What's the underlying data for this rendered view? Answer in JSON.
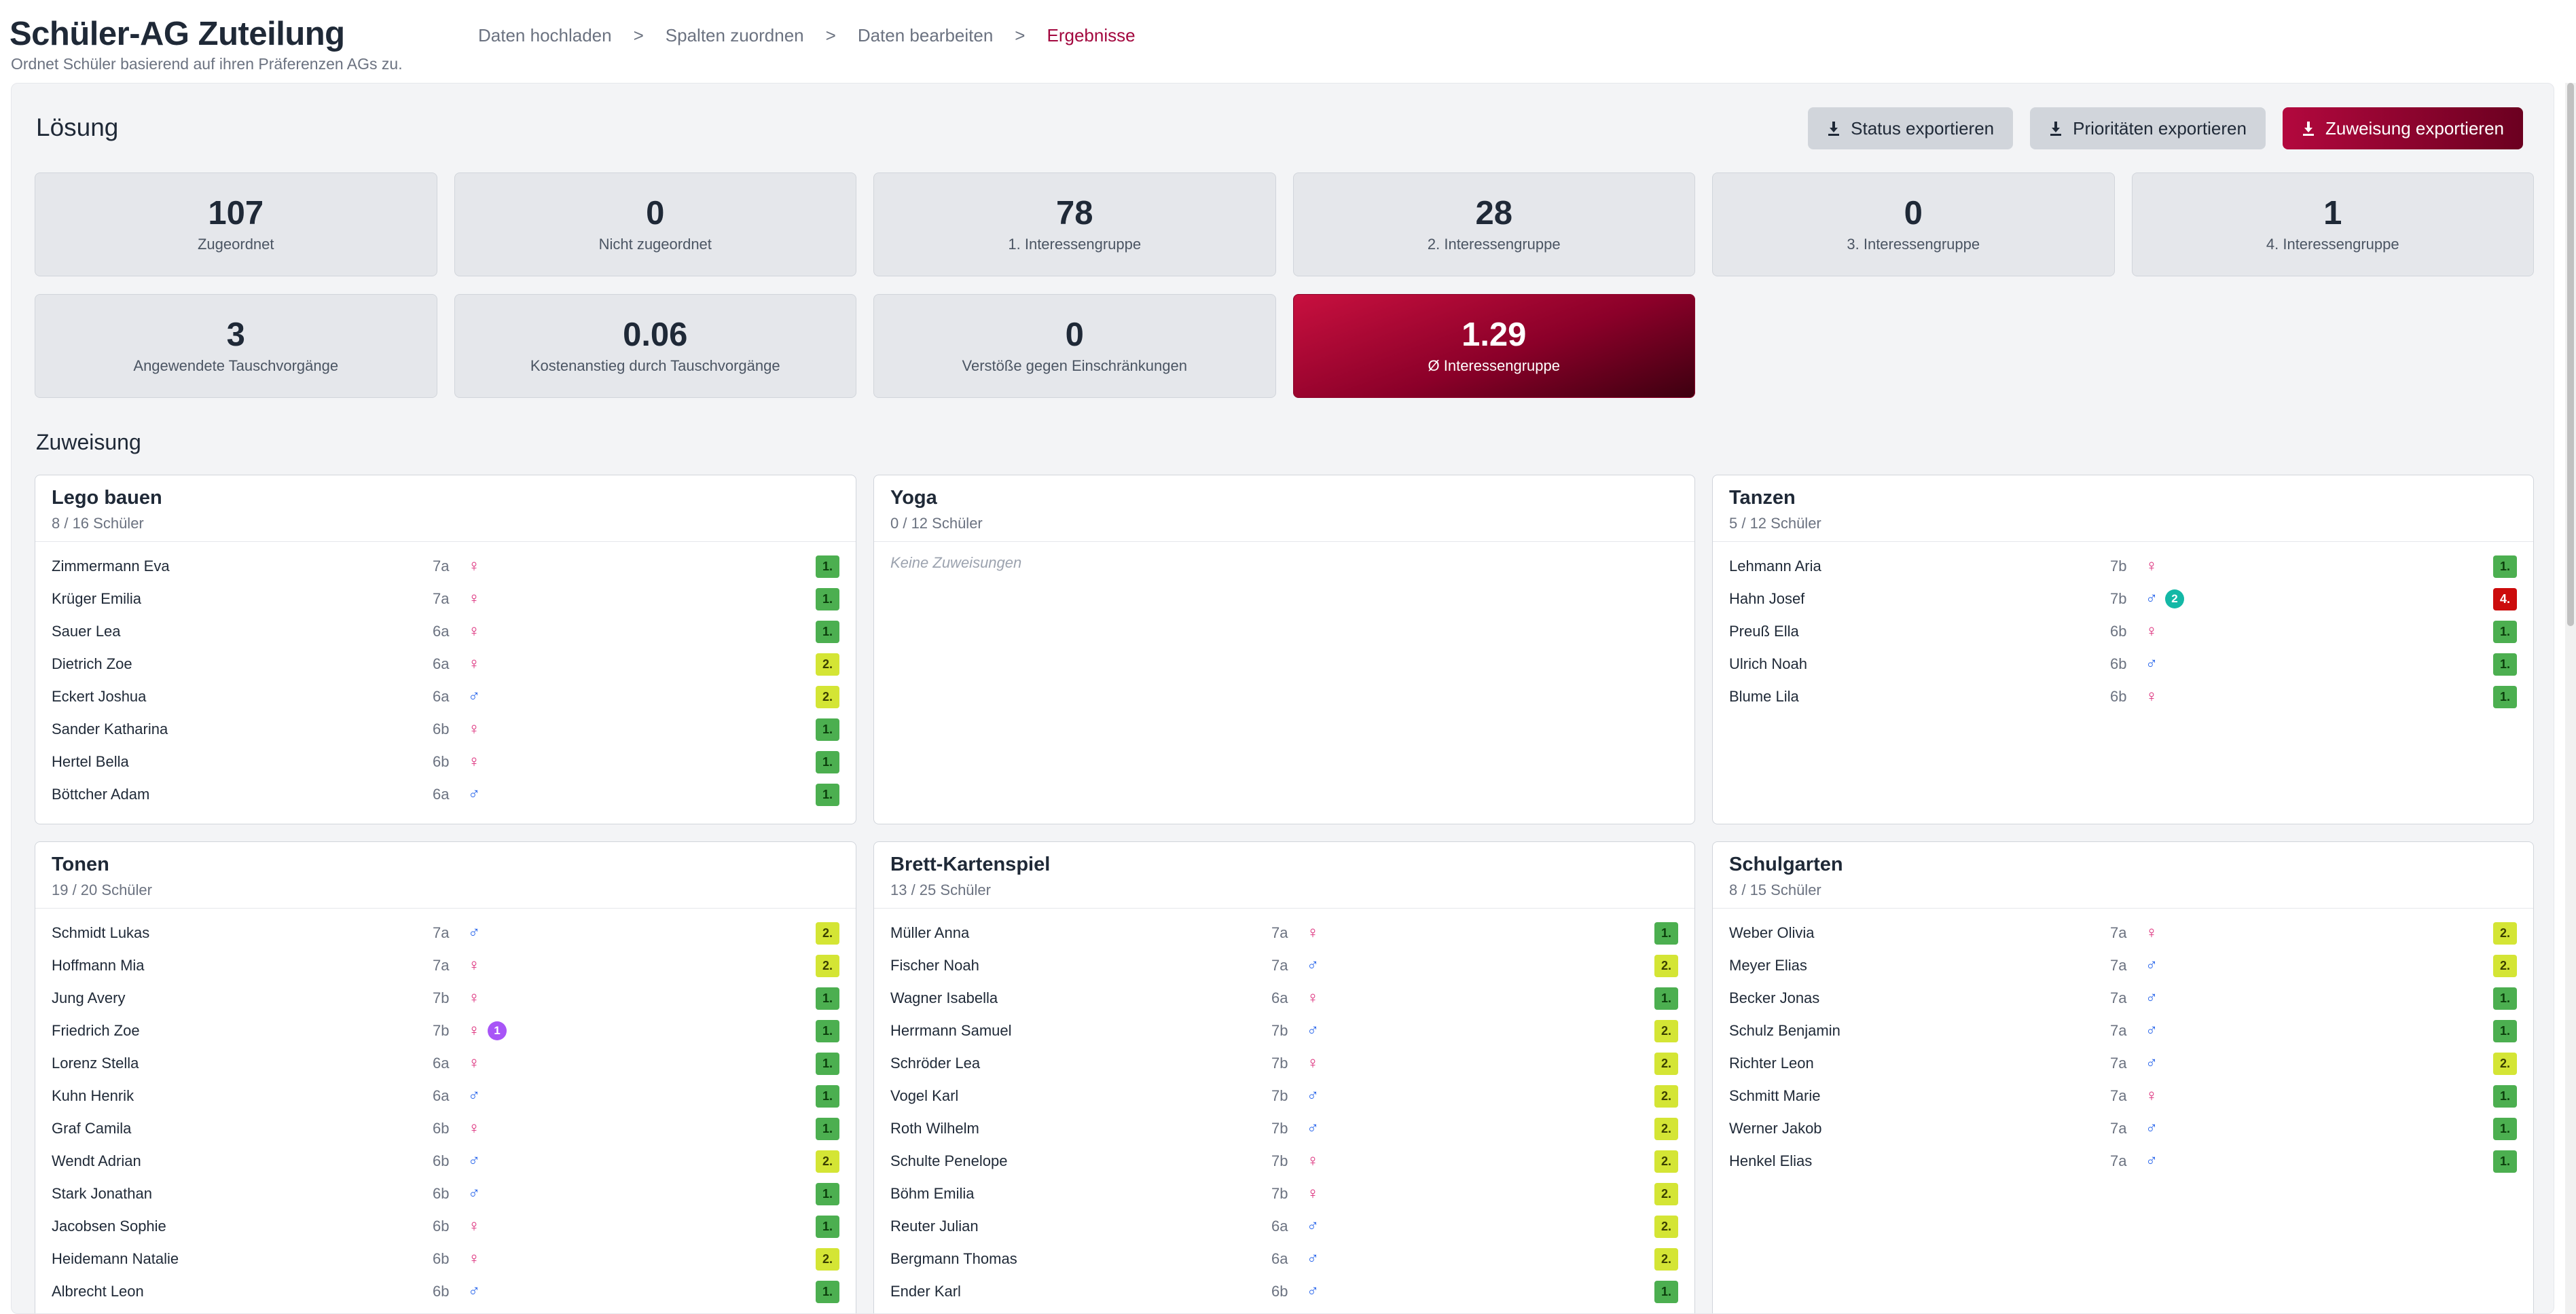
{
  "header": {
    "title": "Schüler-AG Zuteilung",
    "subtitle": "Ordnet Schüler basierend auf ihren Präferenzen AGs zu.",
    "breadcrumb": [
      "Daten hochladen",
      "Spalten zuordnen",
      "Daten bearbeiten",
      "Ergebnisse"
    ],
    "breadcrumb_separator": ">",
    "active_step": "Ergebnisse"
  },
  "loesung": {
    "title": "Lösung",
    "buttons": {
      "status": "Status exportieren",
      "priorities": "Prioritäten exportieren",
      "assignment": "Zuweisung exportieren"
    },
    "stats": [
      {
        "value": "107",
        "label": "Zugeordnet"
      },
      {
        "value": "0",
        "label": "Nicht zugeordnet"
      },
      {
        "value": "78",
        "label": "1. Interessengruppe"
      },
      {
        "value": "28",
        "label": "2. Interessengruppe"
      },
      {
        "value": "0",
        "label": "3. Interessengruppe"
      },
      {
        "value": "1",
        "label": "4. Interessengruppe"
      },
      {
        "value": "3",
        "label": "Angewendete Tauschvorgänge"
      },
      {
        "value": "0.06",
        "label": "Kostenanstieg durch Tauschvorgänge"
      },
      {
        "value": "0",
        "label": "Verstöße gegen Einschränkungen"
      },
      {
        "value": "1.29",
        "label": "Ø Interessengruppe"
      }
    ]
  },
  "zuweisung": {
    "title": "Zuweisung",
    "empty_label": "Keine Zuweisungen",
    "groups": [
      {
        "name": "Lego bauen",
        "count": "8 / 16 Schüler",
        "students": [
          {
            "name": "Zimmermann Eva",
            "class": "7a",
            "gender": "♀",
            "priority": "1."
          },
          {
            "name": "Krüger Emilia",
            "class": "7a",
            "gender": "♀",
            "priority": "1."
          },
          {
            "name": "Sauer Lea",
            "class": "6a",
            "gender": "♀",
            "priority": "1."
          },
          {
            "name": "Dietrich Zoe",
            "class": "6a",
            "gender": "♀",
            "priority": "2."
          },
          {
            "name": "Eckert Joshua",
            "class": "6a",
            "gender": "♂",
            "priority": "2."
          },
          {
            "name": "Sander Katharina",
            "class": "6b",
            "gender": "♀",
            "priority": "1."
          },
          {
            "name": "Hertel Bella",
            "class": "6b",
            "gender": "♀",
            "priority": "1."
          },
          {
            "name": "Böttcher Adam",
            "class": "6a",
            "gender": "♂",
            "priority": "1."
          }
        ]
      },
      {
        "name": "Yoga",
        "count": "0 / 12 Schüler",
        "students": []
      },
      {
        "name": "Tanzen",
        "count": "5 / 12 Schüler",
        "students": [
          {
            "name": "Lehmann Aria",
            "class": "7b",
            "gender": "♀",
            "priority": "1."
          },
          {
            "name": "Hahn Josef",
            "class": "7b",
            "gender": "♂",
            "priority": "4.",
            "swap": "2",
            "swap_color": "#14b8a6"
          },
          {
            "name": "Preuß Ella",
            "class": "6b",
            "gender": "♀",
            "priority": "1."
          },
          {
            "name": "Ulrich Noah",
            "class": "6b",
            "gender": "♂",
            "priority": "1."
          },
          {
            "name": "Blume Lila",
            "class": "6b",
            "gender": "♀",
            "priority": "1."
          }
        ]
      },
      {
        "name": "Tonen",
        "count": "19 / 20 Schüler",
        "students": [
          {
            "name": "Schmidt Lukas",
            "class": "7a",
            "gender": "♂",
            "priority": "2."
          },
          {
            "name": "Hoffmann Mia",
            "class": "7a",
            "gender": "♀",
            "priority": "2."
          },
          {
            "name": "Jung Avery",
            "class": "7b",
            "gender": "♀",
            "priority": "1."
          },
          {
            "name": "Friedrich Zoe",
            "class": "7b",
            "gender": "♀",
            "priority": "1.",
            "swap": "1",
            "swap_color": "#a855f7"
          },
          {
            "name": "Lorenz Stella",
            "class": "6a",
            "gender": "♀",
            "priority": "1."
          },
          {
            "name": "Kuhn Henrik",
            "class": "6a",
            "gender": "♂",
            "priority": "1."
          },
          {
            "name": "Graf Camila",
            "class": "6b",
            "gender": "♀",
            "priority": "1."
          },
          {
            "name": "Wendt Adrian",
            "class": "6b",
            "gender": "♂",
            "priority": "2."
          },
          {
            "name": "Stark Jonathan",
            "class": "6b",
            "gender": "♂",
            "priority": "1."
          },
          {
            "name": "Jacobsen Sophie",
            "class": "6b",
            "gender": "♀",
            "priority": "1."
          },
          {
            "name": "Heidemann Natalie",
            "class": "6b",
            "gender": "♀",
            "priority": "2."
          },
          {
            "name": "Albrecht Leon",
            "class": "6b",
            "gender": "♂",
            "priority": "1."
          }
        ]
      },
      {
        "name": "Brett-Kartenspiel",
        "count": "13 / 25 Schüler",
        "students": [
          {
            "name": "Müller Anna",
            "class": "7a",
            "gender": "♀",
            "priority": "1."
          },
          {
            "name": "Fischer Noah",
            "class": "7a",
            "gender": "♂",
            "priority": "2."
          },
          {
            "name": "Wagner Isabella",
            "class": "6a",
            "gender": "♀",
            "priority": "1."
          },
          {
            "name": "Herrmann Samuel",
            "class": "7b",
            "gender": "♂",
            "priority": "2."
          },
          {
            "name": "Schröder Lea",
            "class": "7b",
            "gender": "♀",
            "priority": "2."
          },
          {
            "name": "Vogel Karl",
            "class": "7b",
            "gender": "♂",
            "priority": "2."
          },
          {
            "name": "Roth Wilhelm",
            "class": "7b",
            "gender": "♂",
            "priority": "2."
          },
          {
            "name": "Schulte Penelope",
            "class": "7b",
            "gender": "♀",
            "priority": "2."
          },
          {
            "name": "Böhm Emilia",
            "class": "7b",
            "gender": "♀",
            "priority": "2."
          },
          {
            "name": "Reuter Julian",
            "class": "6a",
            "gender": "♂",
            "priority": "2."
          },
          {
            "name": "Bergmann Thomas",
            "class": "6a",
            "gender": "♂",
            "priority": "2."
          },
          {
            "name": "Ender Karl",
            "class": "6b",
            "gender": "♂",
            "priority": "1."
          }
        ]
      },
      {
        "name": "Schulgarten",
        "count": "8 / 15 Schüler",
        "students": [
          {
            "name": "Weber Olivia",
            "class": "7a",
            "gender": "♀",
            "priority": "2."
          },
          {
            "name": "Meyer Elias",
            "class": "7a",
            "gender": "♂",
            "priority": "2."
          },
          {
            "name": "Becker Jonas",
            "class": "7a",
            "gender": "♂",
            "priority": "1."
          },
          {
            "name": "Schulz Benjamin",
            "class": "7a",
            "gender": "♂",
            "priority": "1."
          },
          {
            "name": "Richter Leon",
            "class": "7a",
            "gender": "♂",
            "priority": "2."
          },
          {
            "name": "Schmitt Marie",
            "class": "7a",
            "gender": "♀",
            "priority": "1."
          },
          {
            "name": "Werner Jakob",
            "class": "7a",
            "gender": "♂",
            "priority": "1."
          },
          {
            "name": "Henkel Elias",
            "class": "7a",
            "gender": "♂",
            "priority": "1."
          }
        ]
      }
    ]
  },
  "icons": {
    "export": "download-icon"
  },
  "colors": {
    "accent": "#a3083f",
    "priority_1": "#4caf50",
    "priority_2": "#d4e535",
    "priority_4": "#cc0c0c",
    "female": "#db2777",
    "male": "#2563eb"
  }
}
